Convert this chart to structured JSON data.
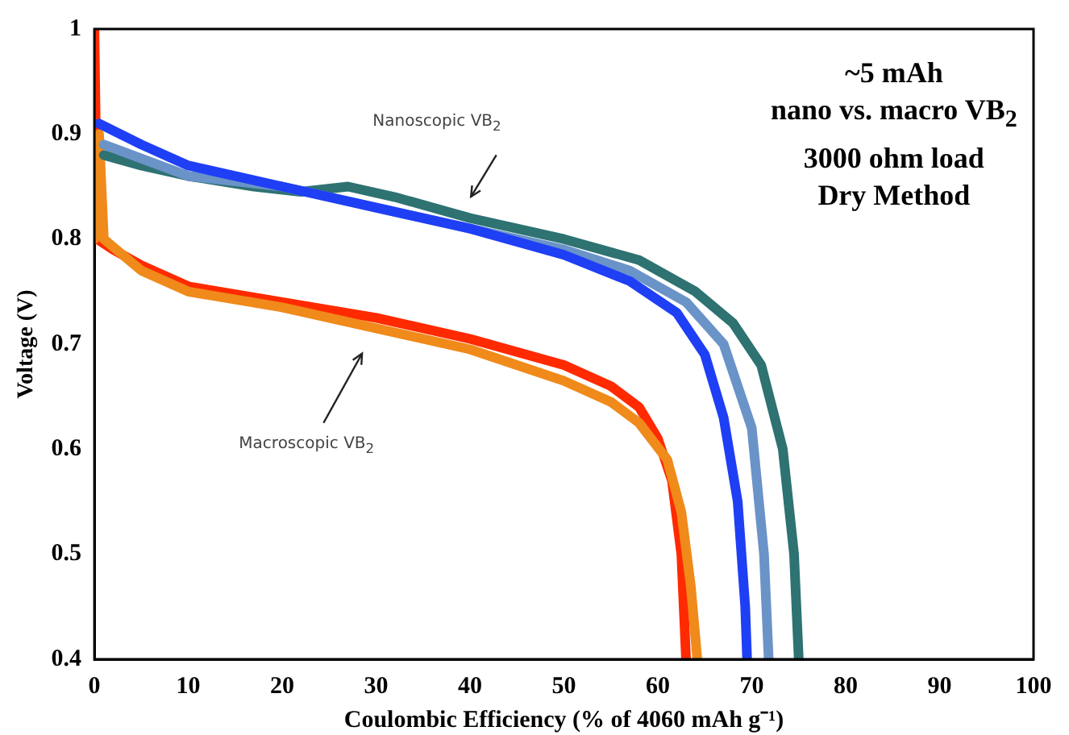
{
  "chart_data": {
    "type": "line",
    "xlabel": "Coulombic Efficiency (% of 4060 mAh g⁻¹)",
    "ylabel": "Voltage (V)",
    "xlim": [
      0,
      100
    ],
    "xticks": [
      0,
      10,
      20,
      30,
      40,
      50,
      60,
      70,
      80,
      90,
      100
    ],
    "ylim": [
      0.4,
      1
    ],
    "yticks": [
      0.4,
      0.5,
      0.6,
      0.7,
      0.8,
      0.9,
      {
        "value": 1,
        "label": "1"
      }
    ],
    "grid": false,
    "legend": false,
    "series": [
      {
        "color": "#1f3ff5",
        "x": [
          0.5,
          5,
          10,
          20,
          30,
          40,
          50,
          57,
          62,
          65,
          67,
          68.5,
          69.3,
          69.5
        ],
        "values": [
          0.91,
          0.89,
          0.87,
          0.85,
          0.83,
          0.81,
          0.785,
          0.76,
          0.73,
          0.69,
          0.63,
          0.55,
          0.45,
          0.4
        ]
      },
      {
        "color": "#6a93c8",
        "x": [
          1,
          10,
          20,
          30,
          40,
          50,
          57,
          63,
          67,
          70,
          71.3,
          71.8
        ],
        "values": [
          0.89,
          0.86,
          0.85,
          0.83,
          0.81,
          0.79,
          0.77,
          0.74,
          0.7,
          0.62,
          0.5,
          0.4
        ]
      },
      {
        "color": "#2e7272",
        "x": [
          1,
          5,
          10,
          17,
          22,
          27,
          32,
          40,
          50,
          58,
          64,
          68,
          71,
          73.3,
          74.5,
          75
        ],
        "values": [
          0.88,
          0.87,
          0.86,
          0.85,
          0.845,
          0.85,
          0.84,
          0.82,
          0.8,
          0.78,
          0.75,
          0.72,
          0.68,
          0.6,
          0.5,
          0.4
        ]
      },
      {
        "color": "#f08a1a",
        "x": [
          0,
          0.5,
          1,
          5,
          10,
          20,
          30,
          40,
          50,
          55,
          58,
          61,
          62.5,
          63.5,
          64.2
        ],
        "values": [
          0.8,
          0.9,
          0.8,
          0.77,
          0.75,
          0.735,
          0.715,
          0.695,
          0.665,
          0.645,
          0.625,
          0.59,
          0.54,
          0.47,
          0.4
        ]
      },
      {
        "color": "#ff2a00",
        "x": [
          0,
          0.3,
          2,
          5,
          10,
          20,
          30,
          40,
          50,
          55,
          58,
          60,
          61.5,
          62.5,
          63
        ],
        "values": [
          1,
          0.8,
          0.79,
          0.775,
          0.755,
          0.74,
          0.725,
          0.705,
          0.68,
          0.66,
          0.64,
          0.61,
          0.57,
          0.5,
          0.4
        ]
      }
    ],
    "annotations": [
      "Nanoscopic VB$_{2}$",
      "Macroscopic VB$_{2}$",
      "~5 mAh",
      "nano vs. macro VB$_{2}$",
      "3000 ohm load",
      "Dry Method"
    ]
  }
}
